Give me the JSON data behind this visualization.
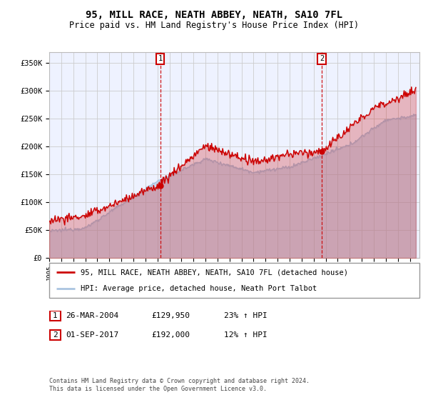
{
  "title": "95, MILL RACE, NEATH ABBEY, NEATH, SA10 7FL",
  "subtitle": "Price paid vs. HM Land Registry's House Price Index (HPI)",
  "ylabel_ticks": [
    "£0",
    "£50K",
    "£100K",
    "£150K",
    "£200K",
    "£250K",
    "£300K",
    "£350K"
  ],
  "ytick_vals": [
    0,
    50000,
    100000,
    150000,
    200000,
    250000,
    300000,
    350000
  ],
  "ylim": [
    0,
    370000
  ],
  "xlim_start": 1995.0,
  "xlim_end": 2025.8,
  "sale1_date_num": 2004.23,
  "sale1_price": 129950,
  "sale1_label": "1",
  "sale2_date_num": 2017.67,
  "sale2_price": 192000,
  "sale2_label": "2",
  "legend_line1": "95, MILL RACE, NEATH ABBEY, NEATH, SA10 7FL (detached house)",
  "legend_line2": "HPI: Average price, detached house, Neath Port Talbot",
  "table_row1": [
    "1",
    "26-MAR-2004",
    "£129,950",
    "23% ↑ HPI"
  ],
  "table_row2": [
    "2",
    "01-SEP-2017",
    "£192,000",
    "12% ↑ HPI"
  ],
  "footer": "Contains HM Land Registry data © Crown copyright and database right 2024.\nThis data is licensed under the Open Government Licence v3.0.",
  "hpi_color": "#aac4e0",
  "price_color": "#cc0000",
  "grid_color": "#cccccc",
  "plot_bg": "#eef2ff"
}
